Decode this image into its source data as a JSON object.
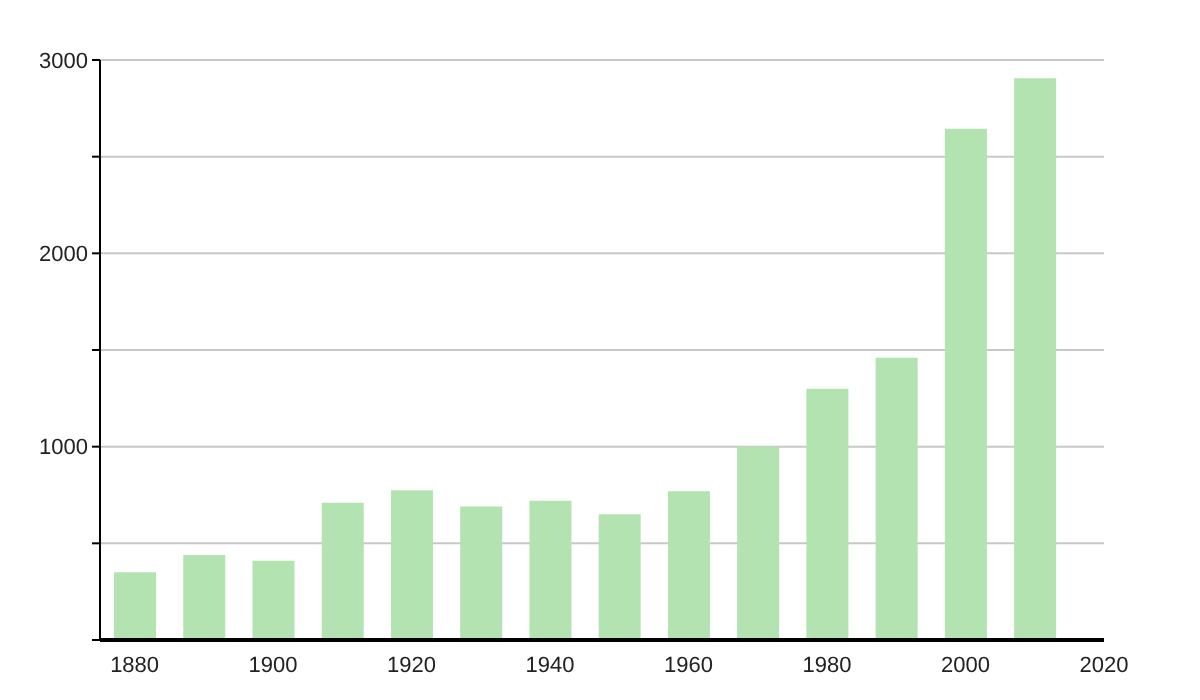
{
  "chart_data": {
    "type": "bar",
    "x": [
      1880,
      1890,
      1900,
      1910,
      1920,
      1930,
      1940,
      1950,
      1960,
      1970,
      1980,
      1990,
      2000,
      2010
    ],
    "values": [
      350,
      440,
      410,
      710,
      775,
      690,
      720,
      650,
      770,
      1000,
      1300,
      1460,
      2645,
      2905
    ],
    "color": "#b2e3b0",
    "xlim": [
      1875,
      2020
    ],
    "xticks": [
      1880,
      1900,
      1920,
      1940,
      1960,
      1980,
      2000,
      2020
    ],
    "ylim": [
      0,
      3000
    ],
    "yticks": [
      {
        "value": 0,
        "label": null
      },
      {
        "value": 500,
        "label": null
      },
      1000,
      {
        "value": 1500,
        "label": null
      },
      2000,
      {
        "value": 2500,
        "label": null
      },
      3000
    ],
    "grid": "y"
  }
}
